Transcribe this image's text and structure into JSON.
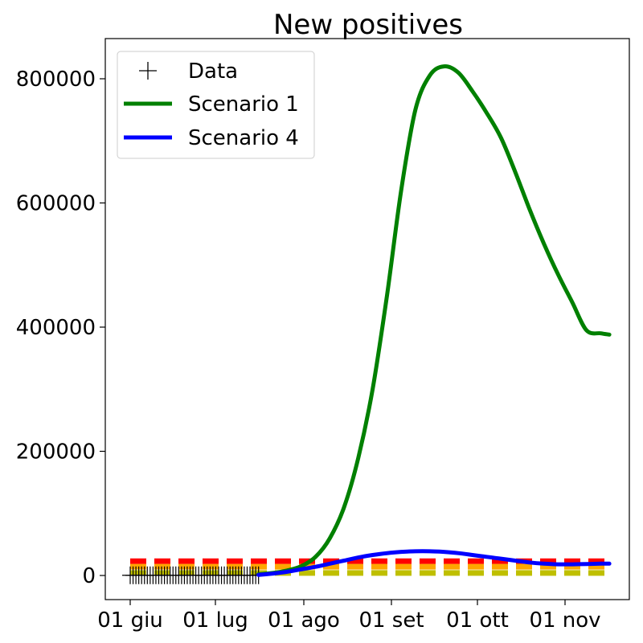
{
  "chart_data": {
    "type": "line",
    "title": "New positives",
    "xlabel": "",
    "ylabel": "",
    "ylim": [
      -40000,
      860000
    ],
    "x_ticks": [
      "01 giu",
      "01 lug",
      "01 ago",
      "01 set",
      "01 ott",
      "01 nov"
    ],
    "y_ticks": [
      "0",
      "200000",
      "400000",
      "600000",
      "800000"
    ],
    "y_tick_values": [
      0,
      200000,
      400000,
      600000,
      800000
    ],
    "legend": {
      "placement": "top-left",
      "entries": [
        "Data",
        "Scenario 1",
        "Scenario 4"
      ]
    },
    "colors": {
      "data": "#000000",
      "scenario1": "#008000",
      "scenario4": "#0000ff",
      "threshold_red": "#ff0000",
      "threshold_orange": "#ffa500",
      "threshold_yellow": "#bfbf00"
    },
    "data_points": {
      "x_start": "2020-06-01",
      "count": 46,
      "value": 300
    },
    "series": [
      {
        "name": "Scenario 1",
        "x": [
          "2020-07-16",
          "2020-07-21",
          "2020-07-26",
          "2020-07-31",
          "2020-08-05",
          "2020-08-10",
          "2020-08-15",
          "2020-08-20",
          "2020-08-25",
          "2020-08-30",
          "2020-09-04",
          "2020-09-09",
          "2020-09-14",
          "2020-09-19",
          "2020-09-24",
          "2020-09-29",
          "2020-10-04",
          "2020-10-09",
          "2020-10-14",
          "2020-10-19",
          "2020-10-24",
          "2020-10-29",
          "2020-11-03",
          "2020-11-08",
          "2020-11-13",
          "2020-11-16"
        ],
        "values": [
          2000,
          4000,
          8000,
          15000,
          30000,
          60000,
          110000,
          190000,
          300000,
          450000,
          620000,
          750000,
          805000,
          820000,
          810000,
          780000,
          745000,
          705000,
          650000,
          590000,
          535000,
          485000,
          440000,
          395000,
          390000,
          388000
        ]
      },
      {
        "name": "Scenario 4",
        "x": [
          "2020-07-16",
          "2020-07-21",
          "2020-07-26",
          "2020-07-31",
          "2020-08-05",
          "2020-08-10",
          "2020-08-15",
          "2020-08-20",
          "2020-08-25",
          "2020-08-30",
          "2020-09-04",
          "2020-09-09",
          "2020-09-14",
          "2020-09-19",
          "2020-09-24",
          "2020-09-29",
          "2020-10-04",
          "2020-10-09",
          "2020-10-14",
          "2020-10-19",
          "2020-10-24",
          "2020-10-29",
          "2020-11-03",
          "2020-11-08",
          "2020-11-13",
          "2020-11-16"
        ],
        "values": [
          1000,
          3000,
          6000,
          10000,
          14000,
          19000,
          24000,
          29000,
          33000,
          36000,
          38000,
          39000,
          39000,
          38000,
          36000,
          33000,
          30000,
          27000,
          24000,
          21000,
          19000,
          18000,
          18000,
          18500,
          19000,
          19000
        ]
      }
    ],
    "thresholds": [
      {
        "color": "red",
        "value": 23000,
        "x_start": "2020-06-01",
        "x_end": "2020-11-16"
      },
      {
        "color": "orange",
        "value": 14000,
        "x_start": "2020-06-01",
        "x_end": "2020-11-16"
      },
      {
        "color": "yellow",
        "value": 4000,
        "x_start": "2020-06-01",
        "x_end": "2020-11-16"
      }
    ],
    "grid": false
  }
}
